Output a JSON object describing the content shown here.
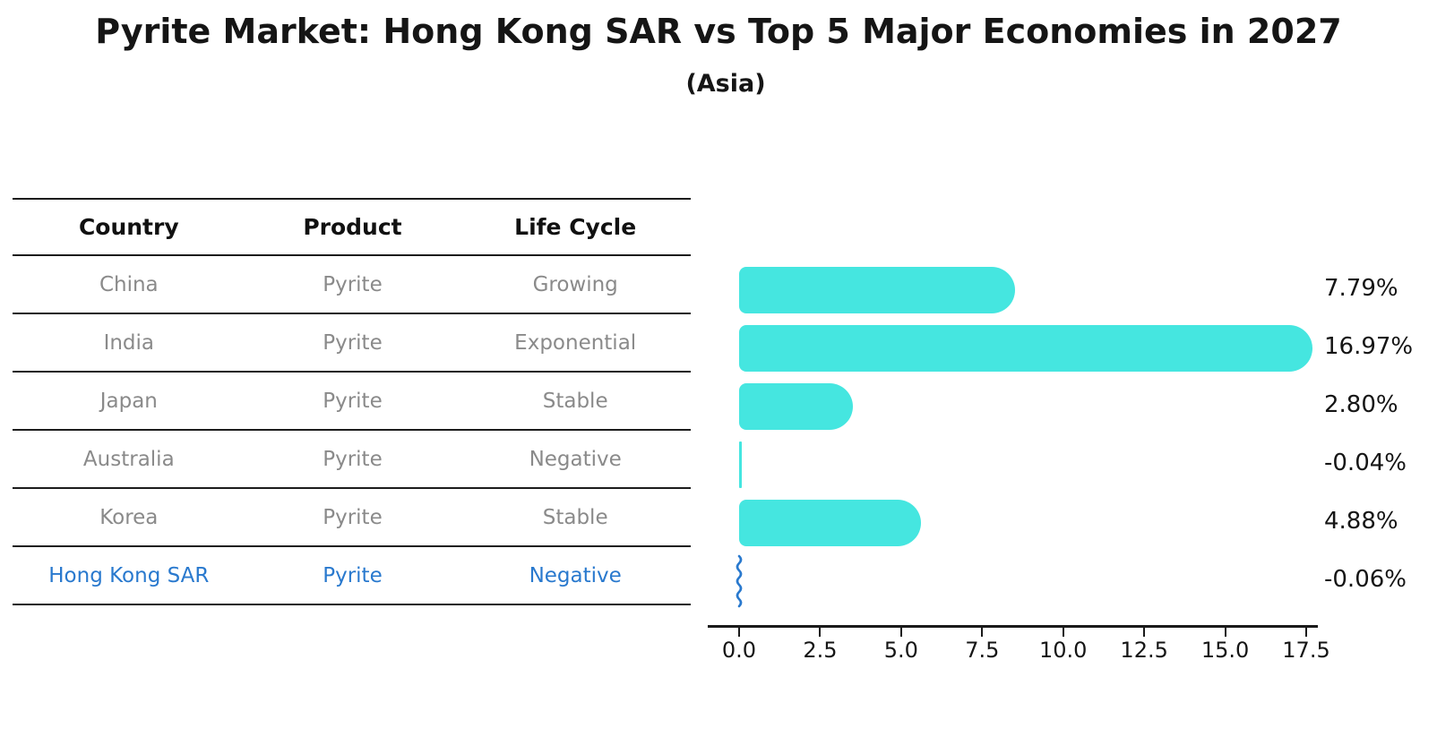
{
  "header": {
    "title": "Pyrite Market: Hong Kong SAR vs Top 5 Major Economies in 2027",
    "subtitle": "(Asia)"
  },
  "table": {
    "columns": [
      "Country",
      "Product",
      "Life Cycle"
    ],
    "rows": [
      {
        "country": "China",
        "product": "Pyrite",
        "life_cycle": "Growing",
        "highlight": false
      },
      {
        "country": "India",
        "product": "Pyrite",
        "life_cycle": "Exponential",
        "highlight": false
      },
      {
        "country": "Japan",
        "product": "Pyrite",
        "life_cycle": "Stable",
        "highlight": false
      },
      {
        "country": "Australia",
        "product": "Pyrite",
        "life_cycle": "Negative",
        "highlight": false
      },
      {
        "country": "Korea",
        "product": "Pyrite",
        "life_cycle": "Stable",
        "highlight": false
      },
      {
        "country": "Hong Kong SAR",
        "product": "Pyrite",
        "life_cycle": "Negative",
        "highlight": true
      }
    ]
  },
  "chart_data": {
    "type": "bar",
    "orientation": "horizontal",
    "title": "Pyrite Market: Hong Kong SAR vs Top 5 Major Economies in 2027",
    "subtitle": "(Asia)",
    "categories": [
      "China",
      "India",
      "Japan",
      "Australia",
      "Korea",
      "Hong Kong SAR"
    ],
    "values": [
      7.79,
      16.97,
      2.8,
      -0.04,
      4.88,
      -0.06
    ],
    "value_labels": [
      "7.79%",
      "16.97%",
      "2.80%",
      "-0.04%",
      "4.88%",
      "-0.06%"
    ],
    "x_tick_labels": [
      "0.0",
      "2.5",
      "5.0",
      "7.5",
      "10.0",
      "12.5",
      "15.0",
      "17.5"
    ],
    "x_tick_values": [
      0,
      2.5,
      5,
      7.5,
      10,
      12.5,
      15,
      17.5
    ],
    "xlim": [
      0,
      17.5
    ],
    "grid": false,
    "legend": false,
    "bar_color": "#45e6e0",
    "highlight_color": "#2979ce",
    "units": "%"
  }
}
